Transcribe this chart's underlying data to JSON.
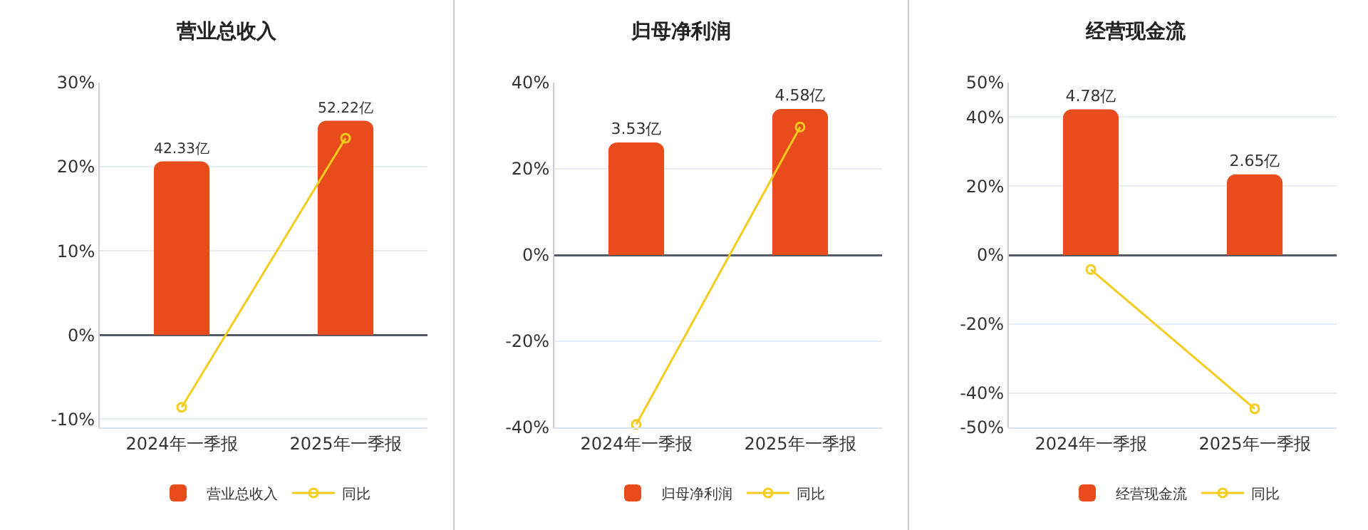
{
  "chart_data": [
    {
      "type": "bar",
      "title": "营业总收入",
      "categories": [
        "2024年一季报",
        "2025年一季报"
      ],
      "series": [
        {
          "name": "营业总收入",
          "axis": "y2",
          "color": "#e84b1c",
          "values": [
            42.33,
            52.22
          ],
          "value_labels": [
            "42.33亿",
            "52.22亿"
          ]
        },
        {
          "name": "同比",
          "type": "line",
          "axis": "y",
          "color": "#f5cc1b",
          "values": [
            -8.6,
            23.4
          ]
        }
      ],
      "ylim": [
        -11,
        30
      ],
      "yticks": [
        {
          "value": -10,
          "label": "-10%"
        },
        {
          "value": 0,
          "label": "0%"
        },
        {
          "value": 10,
          "label": "10%"
        },
        {
          "value": 20,
          "label": "20%"
        },
        {
          "value": 30,
          "label": "30%"
        }
      ],
      "y2lim": [
        -22.5,
        61.5
      ],
      "grid": "y",
      "legend": "bottom",
      "marker": "circle"
    },
    {
      "type": "bar",
      "title": "归母净利润",
      "categories": [
        "2024年一季报",
        "2025年一季报"
      ],
      "series": [
        {
          "name": "归母净利润",
          "axis": "y2",
          "color": "#e84b1c",
          "values": [
            3.53,
            4.58
          ],
          "value_labels": [
            "3.53亿",
            "4.58亿"
          ]
        },
        {
          "name": "同比",
          "type": "line",
          "axis": "y",
          "color": "#f5cc1b",
          "values": [
            -39.3,
            29.7
          ]
        }
      ],
      "ylim": [
        -40,
        40
      ],
      "yticks": [
        {
          "value": -40,
          "label": "-40%"
        },
        {
          "value": -20,
          "label": "-20%"
        },
        {
          "value": 0,
          "label": "0%"
        },
        {
          "value": 20,
          "label": "20%"
        },
        {
          "value": 40,
          "label": "40%"
        }
      ],
      "y2lim": [
        -5.41,
        5.41
      ],
      "grid": "y",
      "legend": "bottom",
      "marker": "circle"
    },
    {
      "type": "bar",
      "title": "经营现金流",
      "categories": [
        "2024年一季报",
        "2025年一季报"
      ],
      "series": [
        {
          "name": "经营现金流",
          "axis": "y2",
          "color": "#e84b1c",
          "values": [
            4.78,
            2.65
          ],
          "value_labels": [
            "4.78亿",
            "2.65亿"
          ]
        },
        {
          "name": "同比",
          "type": "line",
          "axis": "y",
          "color": "#f5cc1b",
          "values": [
            -4.2,
            -44.6
          ]
        }
      ],
      "ylim": [
        -50,
        50
      ],
      "yticks": [
        {
          "value": -50,
          "label": "-50%"
        },
        {
          "value": -40,
          "label": "-40%"
        },
        {
          "value": -20,
          "label": "-20%"
        },
        {
          "value": 0,
          "label": "0%"
        },
        {
          "value": 20,
          "label": "20%"
        },
        {
          "value": 40,
          "label": "40%"
        },
        {
          "value": 50,
          "label": "50%"
        }
      ],
      "y2lim": [
        -5.66,
        5.66
      ],
      "grid": "y",
      "legend": "bottom",
      "marker": "circle"
    }
  ]
}
